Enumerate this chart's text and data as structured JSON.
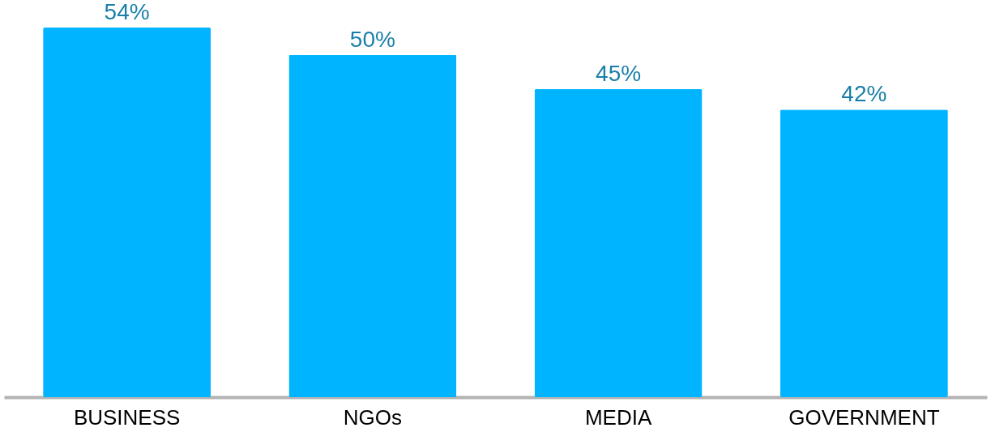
{
  "chart_data": {
    "type": "bar",
    "categories": [
      "BUSINESS",
      "NGOs",
      "MEDIA",
      "GOVERNMENT"
    ],
    "values": [
      54,
      50,
      45,
      42
    ],
    "value_labels": [
      "54%",
      "50%",
      "45%",
      "42%"
    ],
    "color": "#00b4ff"
  }
}
